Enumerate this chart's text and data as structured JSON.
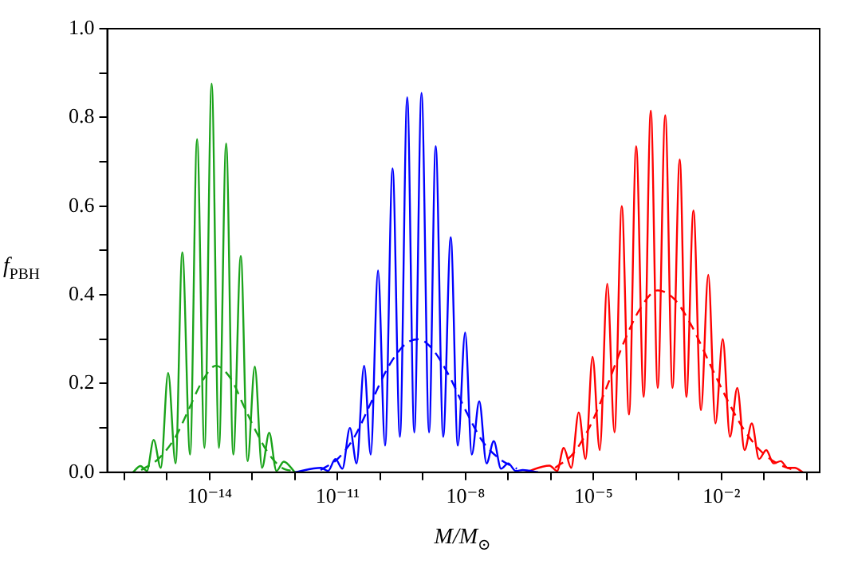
{
  "chart_data": {
    "type": "line",
    "xlabel": "M/M$_{⊙}$",
    "ylabel": "f$_{PBH}$",
    "log": "x",
    "marker": "none",
    "grid": false,
    "legend": false,
    "xlim": [
      4e-17,
      2
    ],
    "ylim": [
      0,
      1
    ],
    "xticks": [
      {
        "value": 1e-16,
        "label": null
      },
      {
        "value": 1e-15,
        "label": null
      },
      {
        "value": 1e-14,
        "label": "10⁻¹⁴"
      },
      {
        "value": 1e-13,
        "label": null
      },
      {
        "value": 1e-12,
        "label": null
      },
      {
        "value": 1e-11,
        "label": "10⁻¹¹"
      },
      {
        "value": 1e-10,
        "label": null
      },
      {
        "value": 1e-09,
        "label": null
      },
      {
        "value": 1e-08,
        "label": "10⁻⁸"
      },
      {
        "value": 1e-07,
        "label": null
      },
      {
        "value": 1e-06,
        "label": null
      },
      {
        "value": 1e-05,
        "label": "10⁻⁵"
      },
      {
        "value": 0.0001,
        "label": null
      },
      {
        "value": 0.001,
        "label": null
      },
      {
        "value": 0.01,
        "label": "10⁻²"
      },
      {
        "value": 0.1,
        "label": null
      },
      {
        "value": 1,
        "label": null
      }
    ],
    "yticks": [
      {
        "value": 0,
        "label": "0.0"
      },
      {
        "value": 0.1,
        "label": null
      },
      {
        "value": 0.2,
        "label": "0.2"
      },
      {
        "value": 0.3,
        "label": null
      },
      {
        "value": 0.4,
        "label": "0.4"
      },
      {
        "value": 0.5,
        "label": null
      },
      {
        "value": 0.6,
        "label": "0.6"
      },
      {
        "value": 0.7,
        "label": null
      },
      {
        "value": 0.8,
        "label": "0.8"
      },
      {
        "value": 0.9,
        "label": null
      },
      {
        "value": 1,
        "label": "1.0"
      }
    ],
    "series": [
      {
        "color": "#1aa31a",
        "line_style": "solid",
        "x": [
          1.6e-16,
          2.4e-16,
          3.4e-16,
          4.9e-16,
          7.2e-16,
          1.07e-15,
          1.6e-15,
          2.3e-15,
          3.5e-15,
          5.1e-15,
          7.6e-15,
          1.12e-14,
          1.66e-14,
          2.45e-14,
          3.6e-14,
          5.4e-14,
          7.8e-14,
          1.15e-13,
          1.7e-13,
          2.5e-13,
          3.7e-13,
          5.5e-13,
          1e-12
        ],
        "values": [
          0,
          0.014,
          0.003,
          0.073,
          0.01,
          0.224,
          0.02,
          0.496,
          0.04,
          0.751,
          0.055,
          0.876,
          0.055,
          0.741,
          0.04,
          0.488,
          0.025,
          0.238,
          0.01,
          0.089,
          0.003,
          0.024,
          0
        ]
      },
      {
        "color": "#1aa31a",
        "line_style": "dashed",
        "x": [
          2.5e-16,
          6.3e-16,
          1.6e-15,
          3.2e-15,
          6.3e-15,
          1.4e-14,
          3.2e-14,
          6.3e-14,
          1.26e-13,
          2.5e-13,
          5e-13,
          1e-12
        ],
        "values": [
          0.005,
          0.03,
          0.08,
          0.14,
          0.2,
          0.24,
          0.21,
          0.15,
          0.09,
          0.04,
          0.01,
          0.002
        ]
      },
      {
        "color": "#0000ff",
        "line_style": "solid",
        "x": [
          1e-12,
          4.1e-12,
          6e-12,
          8.9e-12,
          1.3e-11,
          1.95e-11,
          2.8e-11,
          4.2e-11,
          6e-11,
          8.9e-11,
          1.3e-10,
          1.95e-10,
          2.9e-10,
          4.3e-10,
          6.3e-10,
          9.3e-10,
          1.4e-09,
          2e-09,
          3e-09,
          4.5e-09,
          6.6e-09,
          9.8e-09,
          1.4e-08,
          2.1e-08,
          3.1e-08,
          4.6e-08,
          6.8e-08,
          1e-07,
          1.5e-07,
          2.2e-07,
          5e-07
        ],
        "values": [
          0,
          0.01,
          0.003,
          0.03,
          0.008,
          0.1,
          0.02,
          0.24,
          0.04,
          0.455,
          0.06,
          0.685,
          0.08,
          0.845,
          0.09,
          0.855,
          0.09,
          0.735,
          0.08,
          0.53,
          0.06,
          0.315,
          0.04,
          0.16,
          0.02,
          0.07,
          0.008,
          0.02,
          0.003,
          0.005,
          0
        ]
      },
      {
        "color": "#0000ff",
        "line_style": "dashed",
        "x": [
          4e-12,
          1e-11,
          2.5e-11,
          6.3e-11,
          1.6e-10,
          4e-10,
          7.9e-10,
          1.6e-09,
          4e-09,
          1e-08,
          2.5e-08,
          6.3e-08,
          1.6e-07
        ],
        "values": [
          0.005,
          0.03,
          0.08,
          0.16,
          0.24,
          0.29,
          0.3,
          0.28,
          0.22,
          0.14,
          0.07,
          0.03,
          0.008
        ]
      },
      {
        "color": "#ff0000",
        "line_style": "solid",
        "x": [
          2.5e-07,
          9.3e-07,
          1.4e-06,
          2e-06,
          3e-06,
          4.5e-06,
          6.5e-06,
          9.5e-06,
          1.4e-05,
          2.1e-05,
          3.1e-05,
          4.6e-05,
          6.8e-05,
          0.0001,
          0.00015,
          0.00022,
          0.00032,
          0.00048,
          0.00071,
          0.00105,
          0.0015,
          0.0022,
          0.0033,
          0.0049,
          0.0072,
          0.0107,
          0.0158,
          0.0234,
          0.0347,
          0.0513,
          0.0759,
          0.112,
          0.166,
          0.245,
          0.355,
          0.525,
          0.8
        ],
        "values": [
          0,
          0.015,
          0.003,
          0.055,
          0.01,
          0.135,
          0.03,
          0.26,
          0.05,
          0.425,
          0.09,
          0.6,
          0.13,
          0.735,
          0.17,
          0.815,
          0.19,
          0.805,
          0.19,
          0.705,
          0.17,
          0.59,
          0.14,
          0.445,
          0.11,
          0.3,
          0.08,
          0.19,
          0.05,
          0.11,
          0.03,
          0.05,
          0.02,
          0.025,
          0.01,
          0.01,
          0
        ]
      },
      {
        "color": "#ff0000",
        "line_style": "dashed",
        "x": [
          1.26e-06,
          3.2e-06,
          7.9e-06,
          2e-05,
          5e-05,
          0.000126,
          0.00032,
          0.00079,
          0.002,
          0.005,
          0.0126,
          0.0316,
          0.0794,
          0.2,
          0.5
        ],
        "values": [
          0.01,
          0.04,
          0.1,
          0.19,
          0.29,
          0.37,
          0.41,
          0.39,
          0.33,
          0.25,
          0.17,
          0.1,
          0.05,
          0.02,
          0.005
        ]
      }
    ]
  }
}
